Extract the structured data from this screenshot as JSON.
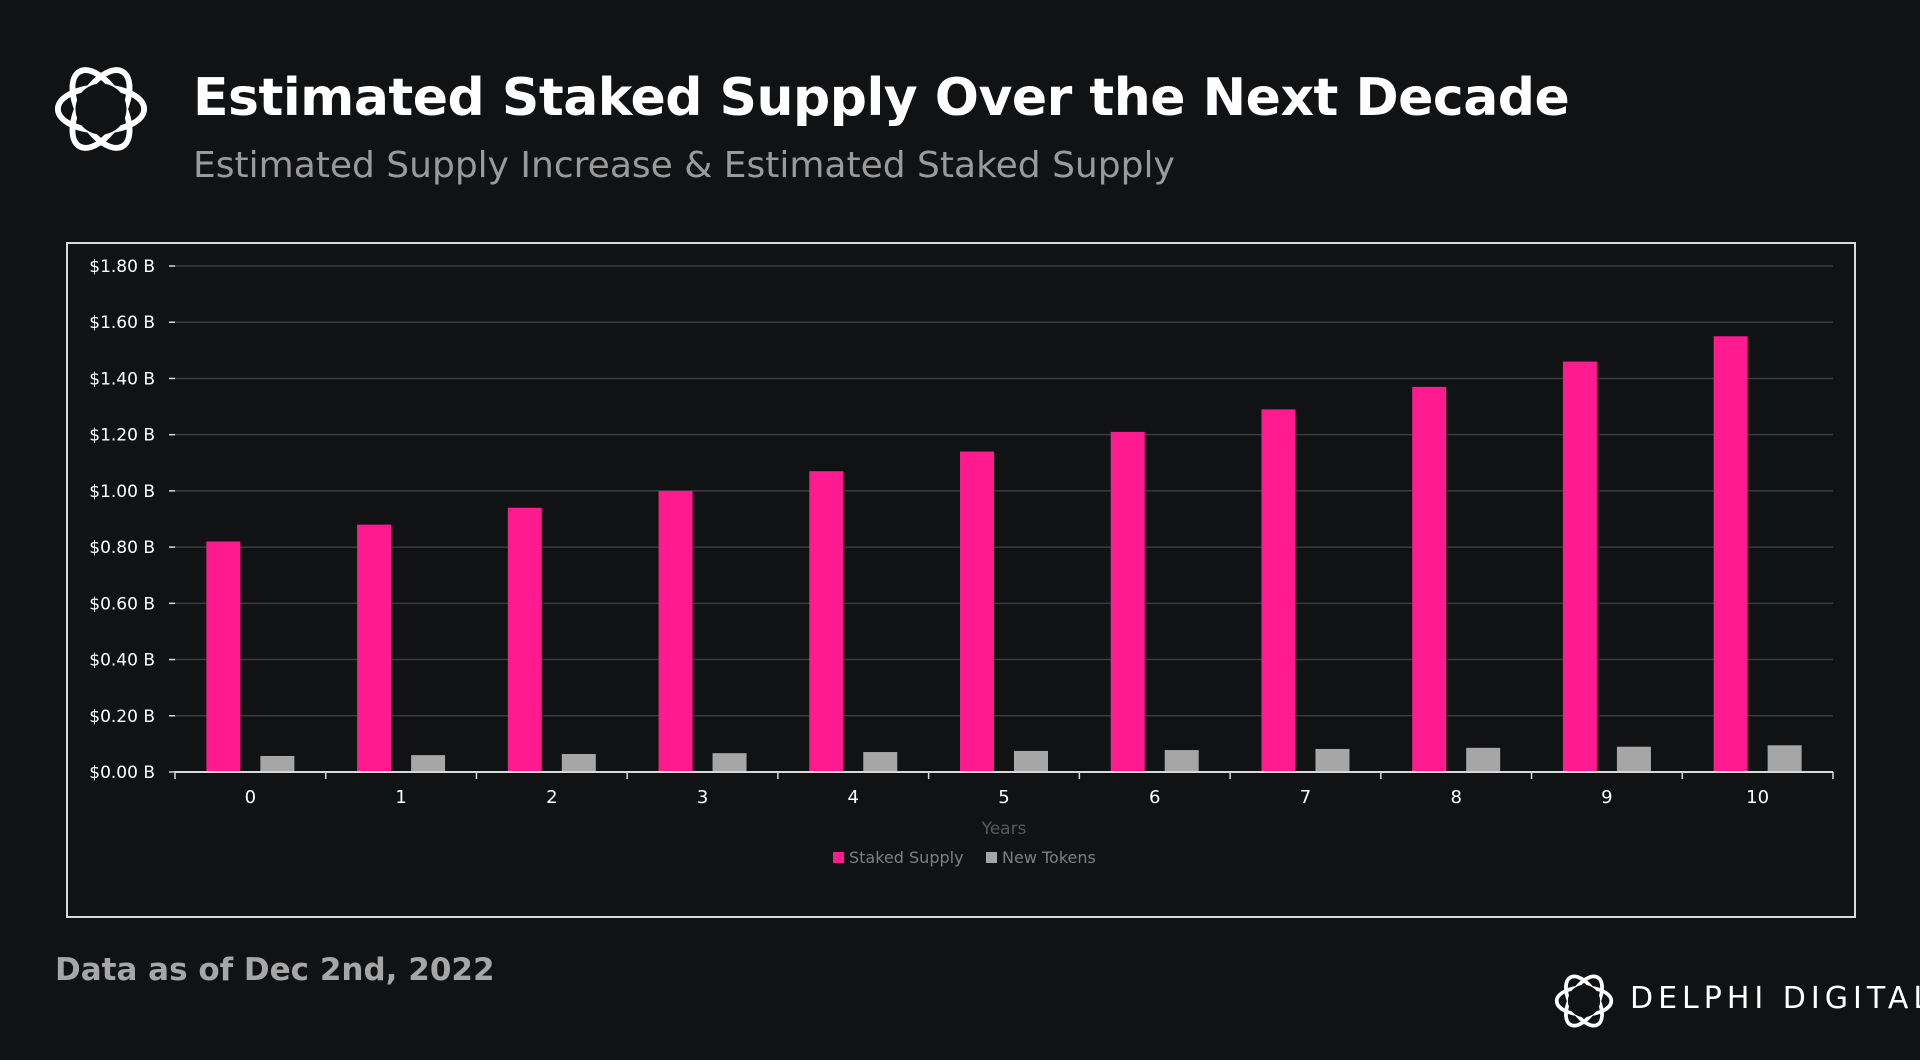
{
  "header": {
    "title": "Estimated Staked Supply Over the Next Decade",
    "subtitle": "Estimated Supply Increase & Estimated Staked Supply"
  },
  "footer": {
    "note": "Data as of Dec 2nd, 2022",
    "brand": "DELPHI DIGITAL"
  },
  "colors": {
    "background": "#111214",
    "staked": "#ff1a90",
    "new_tokens": "#a6a6a6"
  },
  "chart_data": {
    "type": "bar",
    "categories": [
      "0",
      "1",
      "2",
      "3",
      "4",
      "5",
      "6",
      "7",
      "8",
      "9",
      "10"
    ],
    "series": [
      {
        "name": "Staked Supply",
        "color": "#ff1a90",
        "values": [
          0.82,
          0.88,
          0.94,
          1.0,
          1.07,
          1.14,
          1.21,
          1.29,
          1.37,
          1.46,
          1.55
        ]
      },
      {
        "name": "New Tokens",
        "color": "#a6a6a6",
        "values": [
          0.057,
          0.06,
          0.064,
          0.067,
          0.071,
          0.075,
          0.078,
          0.082,
          0.086,
          0.09,
          0.095
        ]
      }
    ],
    "y_ticks": [
      "$0.00 B",
      "$0.20 B",
      "$0.40 B",
      "$0.60 B",
      "$0.80 B",
      "$1.00 B",
      "$1.20 B",
      "$1.40 B",
      "$1.60 B",
      "$1.80 B"
    ],
    "xlabel": "Years",
    "ylabel": "",
    "ylim": [
      0,
      1.8
    ],
    "grid": true,
    "legend": "bottom"
  }
}
